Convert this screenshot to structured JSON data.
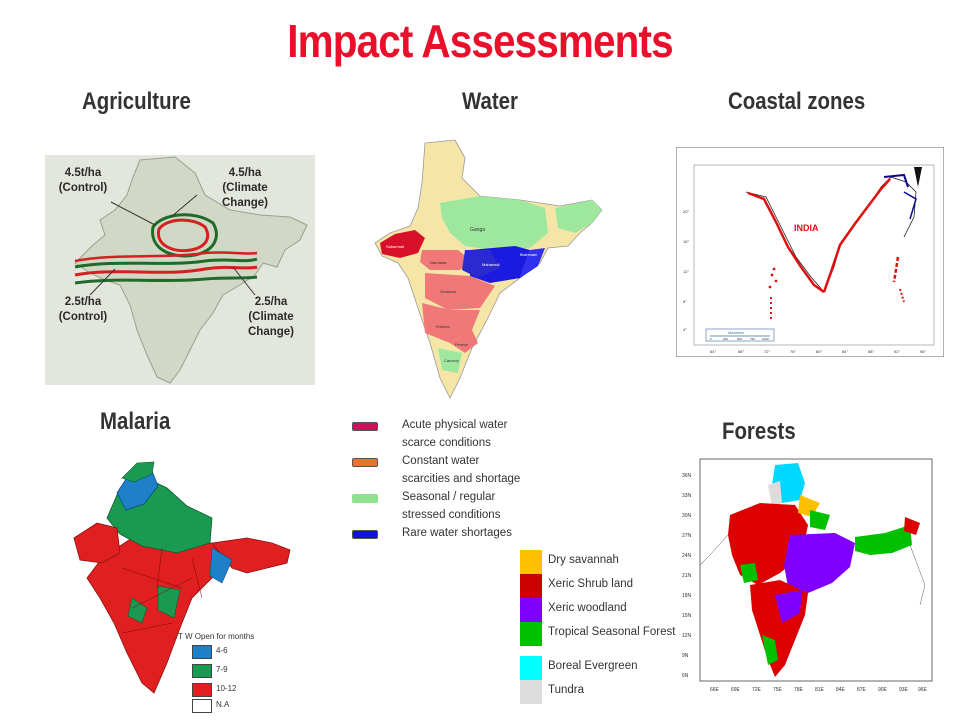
{
  "title": "Impact Assessments",
  "headings": {
    "agriculture": "Agriculture",
    "water": "Water",
    "coastal": "Coastal zones",
    "malaria": "Malaria",
    "forests": "Forests"
  },
  "agriculture": {
    "labels": {
      "top_left_1": "4.5t/ha",
      "top_left_2": "(Control)",
      "top_right_1": "4.5/ha",
      "top_right_2": "(Climate",
      "top_right_3": "Change)",
      "bottom_left_1": "2.5t/ha",
      "bottom_left_2": "(Control)",
      "bottom_right_1": "2.5/ha",
      "bottom_right_2": "(Climate",
      "bottom_right_3": "Change)"
    },
    "colors": {
      "control": "#1f6b2a",
      "climate_change": "#d42020",
      "land": "#d8dccf"
    }
  },
  "water": {
    "legend": [
      {
        "label": "Acute physical water scarce conditions",
        "color": "#c0185a"
      },
      {
        "label": "Constant water scarcities and shortage",
        "color": "#f07030"
      },
      {
        "label": "Seasonal / regular stressed conditions",
        "color": "#8fe08f"
      },
      {
        "label": "Rare water shortages",
        "color": "#1010e0"
      }
    ],
    "basin_labels": [
      "Ganga",
      "Narmada",
      "Mahanadi",
      "Godavari",
      "Krishna",
      "Pennar",
      "Cauvery",
      "Sabarmati",
      "Brahmani"
    ]
  },
  "coastal": {
    "country_label": "INDIA",
    "lat_ticks": [
      "20°",
      "16°",
      "12°",
      "8°",
      "4°"
    ],
    "lon_ticks": [
      "64°",
      "68°",
      "72°",
      "76°",
      "80°",
      "84°",
      "88°",
      "92°",
      "96°"
    ],
    "scale_label": "kilometers",
    "scale_ticks": [
      "0",
      "250",
      "500",
      "750",
      "1000"
    ],
    "colors": {
      "coast": "#e01010",
      "sea_level": "#0a0a8a"
    }
  },
  "malaria": {
    "legend_title": "T W Open for months",
    "legend": [
      {
        "label": "4-6",
        "color": "#1e80c8"
      },
      {
        "label": "7-9",
        "color": "#1a9a50"
      },
      {
        "label": "10-12",
        "color": "#e02020"
      },
      {
        "label": "N.A",
        "color": "#ffffff"
      }
    ]
  },
  "forests": {
    "legend": [
      {
        "label": "Dry savannah",
        "color": "#ffc000"
      },
      {
        "label": "Xeric Shrub land",
        "color": "#cc0000"
      },
      {
        "label": "Xeric woodland",
        "color": "#7f00ff"
      },
      {
        "label": "Tropical Seasonal Forest",
        "color": "#00c000"
      },
      {
        "label": "Boreal Evergreen",
        "color": "#00ffff"
      },
      {
        "label": "Tundra",
        "color": "#dcdcdc"
      }
    ],
    "lat_ticks": [
      "36N",
      "33N",
      "30N",
      "27N",
      "24N",
      "21N",
      "18N",
      "15N",
      "12N",
      "9N",
      "6N"
    ],
    "lon_ticks": [
      "66E",
      "69E",
      "72E",
      "75E",
      "78E",
      "81E",
      "84E",
      "87E",
      "90E",
      "93E",
      "96E"
    ]
  }
}
